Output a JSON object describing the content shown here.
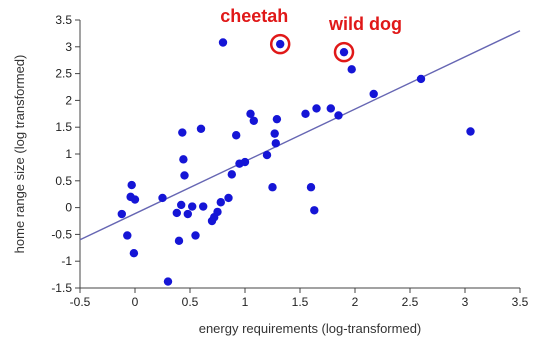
{
  "chart_data": {
    "type": "scatter",
    "xlabel": "energy requirements (log-transformed)",
    "ylabel": "home range size (log transformed)",
    "xlim": [
      -0.5,
      3.5
    ],
    "ylim": [
      -1.5,
      3.5
    ],
    "xticks": [
      "-0.5",
      "0",
      "0.5",
      "1",
      "1.5",
      "2",
      "2.5",
      "3",
      "3.5"
    ],
    "yticks": [
      "-1.5",
      "-1",
      "-0.5",
      "0",
      "0.5",
      "1",
      "1.5",
      "2",
      "2.5",
      "3",
      "3.5"
    ],
    "grid": false,
    "legend": "none",
    "colors": {
      "points": "#1515d6",
      "trend_line": "#6666b3",
      "highlight": "#e01818",
      "axis": "#444444"
    },
    "trend_line": {
      "x": [
        -0.5,
        3.5
      ],
      "y": [
        -0.6,
        3.3
      ]
    },
    "points": [
      {
        "x": -0.12,
        "y": -0.12
      },
      {
        "x": -0.07,
        "y": -0.52
      },
      {
        "x": -0.04,
        "y": 0.2
      },
      {
        "x": -0.03,
        "y": 0.42
      },
      {
        "x": 0.0,
        "y": 0.15
      },
      {
        "x": -0.01,
        "y": -0.85
      },
      {
        "x": 0.25,
        "y": 0.18
      },
      {
        "x": 0.3,
        "y": -1.38
      },
      {
        "x": 0.38,
        "y": -0.1
      },
      {
        "x": 0.4,
        "y": -0.62
      },
      {
        "x": 0.42,
        "y": 0.05
      },
      {
        "x": 0.43,
        "y": 1.4
      },
      {
        "x": 0.44,
        "y": 0.9
      },
      {
        "x": 0.45,
        "y": 0.6
      },
      {
        "x": 0.48,
        "y": -0.12
      },
      {
        "x": 0.52,
        "y": 0.02
      },
      {
        "x": 0.55,
        "y": -0.52
      },
      {
        "x": 0.6,
        "y": 1.47
      },
      {
        "x": 0.62,
        "y": 0.02
      },
      {
        "x": 0.7,
        "y": -0.25
      },
      {
        "x": 0.72,
        "y": -0.18
      },
      {
        "x": 0.75,
        "y": -0.08
      },
      {
        "x": 0.78,
        "y": 0.1
      },
      {
        "x": 0.8,
        "y": 3.08
      },
      {
        "x": 0.85,
        "y": 0.18
      },
      {
        "x": 0.88,
        "y": 0.62
      },
      {
        "x": 0.92,
        "y": 1.35
      },
      {
        "x": 0.95,
        "y": 0.82
      },
      {
        "x": 1.0,
        "y": 0.85
      },
      {
        "x": 1.05,
        "y": 1.75
      },
      {
        "x": 1.08,
        "y": 1.62
      },
      {
        "x": 1.2,
        "y": 0.98
      },
      {
        "x": 1.25,
        "y": 0.38
      },
      {
        "x": 1.27,
        "y": 1.38
      },
      {
        "x": 1.28,
        "y": 1.2
      },
      {
        "x": 1.29,
        "y": 1.65
      },
      {
        "x": 1.32,
        "y": 3.05
      },
      {
        "x": 1.55,
        "y": 1.75
      },
      {
        "x": 1.6,
        "y": 0.38
      },
      {
        "x": 1.63,
        "y": -0.05
      },
      {
        "x": 1.65,
        "y": 1.85
      },
      {
        "x": 1.78,
        "y": 1.85
      },
      {
        "x": 1.85,
        "y": 1.72
      },
      {
        "x": 1.9,
        "y": 2.9
      },
      {
        "x": 1.97,
        "y": 2.58
      },
      {
        "x": 2.17,
        "y": 2.12
      },
      {
        "x": 2.6,
        "y": 2.4
      },
      {
        "x": 3.05,
        "y": 1.42
      }
    ],
    "annotations": [
      {
        "label": "cheetah",
        "x": 1.32,
        "y": 3.05,
        "ring": true
      },
      {
        "label": "wild dog",
        "x": 1.9,
        "y": 2.9,
        "ring": true
      }
    ]
  }
}
